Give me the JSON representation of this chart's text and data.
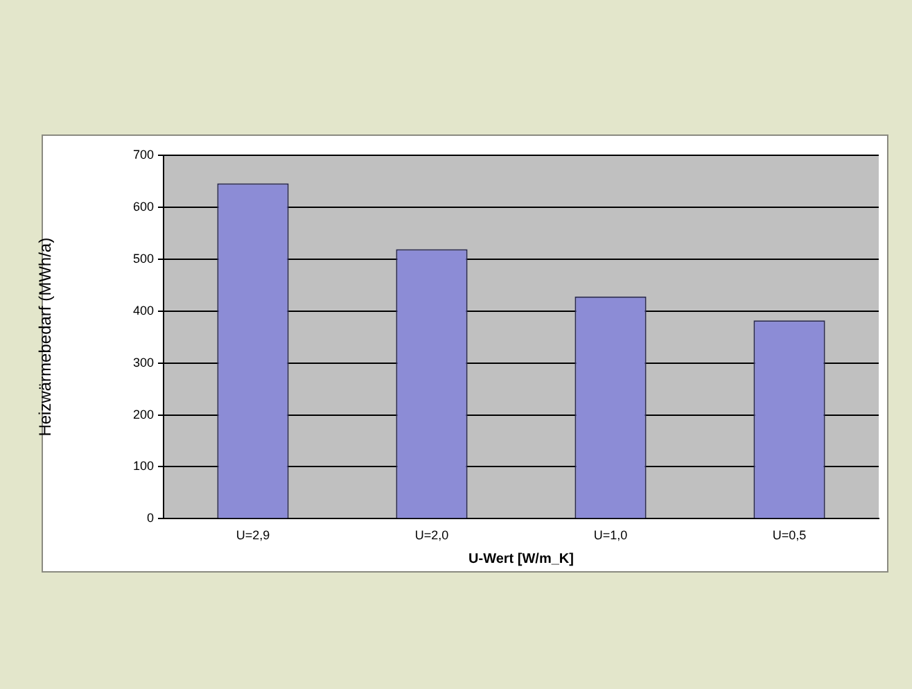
{
  "chart_data": {
    "type": "bar",
    "xlabel": "U-Wert [W/m_K]",
    "ylabel": "Heizwärmebedarf (MWh/a)",
    "categories": [
      "U=2,9",
      "U=2,0",
      "U=1,0",
      "U=0,5"
    ],
    "values": [
      646,
      519,
      428,
      382
    ],
    "color": "#8c8cd6",
    "ylim": [
      0,
      700
    ],
    "yticks": [
      0,
      100,
      200,
      300,
      400,
      500,
      600,
      700
    ],
    "grid": "y",
    "legend": false
  }
}
